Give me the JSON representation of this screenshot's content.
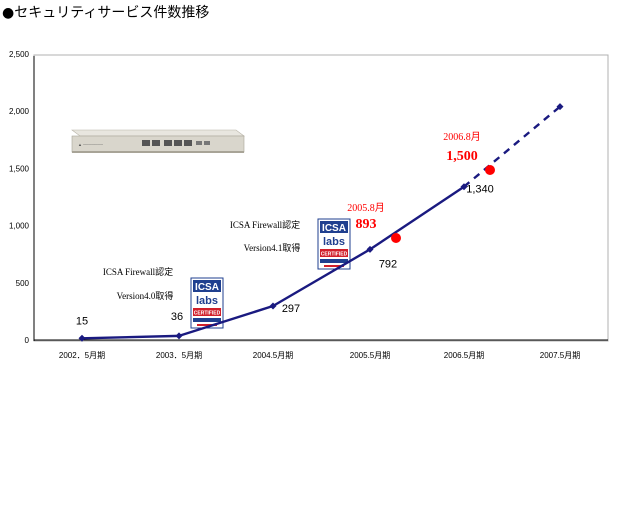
{
  "title": "●セキュリティサービス件数推移",
  "chart_data": {
    "type": "line",
    "categories": [
      "2002．5月期",
      "2003．5月期",
      "2004.5月期",
      "2005.5月期",
      "2006.5月期",
      "2007.5月期"
    ],
    "y_ticks": [
      "0",
      "500",
      "1,000",
      "1,500",
      "2,000",
      "2,500"
    ],
    "ylim": [
      0,
      2500
    ],
    "series": [
      {
        "values": [
          15,
          36,
          297,
          792,
          1340,
          null
        ],
        "labels": [
          "15",
          "36",
          "297",
          "792",
          "1,340",
          ""
        ]
      }
    ],
    "forecast": {
      "from_value": 1340,
      "to_value": 2040,
      "style": "dashed"
    },
    "highlights": [
      {
        "date": "2005.8月",
        "value_label": "893",
        "value": 893
      },
      {
        "date": "2006.8月",
        "value_label": "1,500",
        "value": 1500
      }
    ],
    "annotations": [
      {
        "line1": "ICSA Firewall認定",
        "line2": "Version4.0取得"
      },
      {
        "line1": "ICSA Firewall認定",
        "line2": "Version4.1取得"
      }
    ],
    "badge": {
      "top": "ICSA",
      "middle": "labs",
      "bottom": "CERTIFIED"
    },
    "grid": false,
    "line_color": "#1a1a80",
    "highlight_color": "#ff0000"
  }
}
